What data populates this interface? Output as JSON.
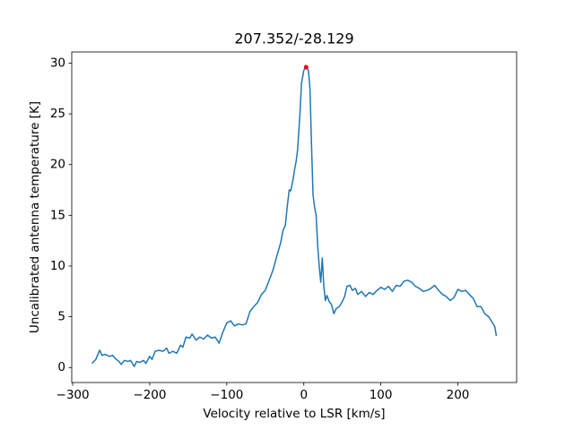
{
  "chart_data": {
    "type": "line",
    "title": "207.352/-28.129",
    "x_label": "Velocity relative to LSR [km/s]",
    "y_label": "Uncalibrated antenna temperature [K]",
    "xlim": [
      -301.25,
      276.25
    ],
    "ylim": [
      -1.48,
      31.1
    ],
    "xticks": [
      {
        "value": -300,
        "label": "−300"
      },
      {
        "value": -200,
        "label": "−200"
      },
      {
        "value": -100,
        "label": "−100"
      },
      0,
      100,
      200
    ],
    "yticks": [
      0,
      5,
      10,
      15,
      20,
      25,
      30
    ],
    "grid": false,
    "series": [
      {
        "color": "#1f77b4",
        "style": "line",
        "x": [
          -275,
          -270,
          -265,
          -262,
          -258,
          -252,
          -248,
          -245,
          -240,
          -237,
          -233,
          -228,
          -225,
          -220,
          -217,
          -213,
          -208,
          -205,
          -200,
          -197,
          -193,
          -188,
          -183,
          -178,
          -175,
          -170,
          -165,
          -160,
          -157,
          -153,
          -148,
          -145,
          -140,
          -135,
          -130,
          -125,
          -120,
          -115,
          -110,
          -105,
          -100,
          -95,
          -90,
          -85,
          -80,
          -75,
          -70,
          -65,
          -60,
          -55,
          -50,
          -45,
          -40,
          -35,
          -30,
          -27,
          -24,
          -22,
          -19,
          -17,
          -14,
          -12,
          -10,
          -8,
          -5,
          -3,
          0,
          3,
          6,
          8,
          10,
          12,
          14,
          16,
          18,
          20,
          22,
          24,
          26,
          28,
          30,
          33,
          36,
          39,
          42,
          46,
          50,
          53,
          56,
          60,
          63,
          67,
          70,
          75,
          80,
          85,
          90,
          95,
          100,
          105,
          110,
          115,
          120,
          125,
          130,
          135,
          140,
          145,
          150,
          155,
          160,
          165,
          170,
          175,
          180,
          185,
          190,
          195,
          200,
          205,
          210,
          215,
          220,
          225,
          230,
          235,
          240,
          245,
          248,
          250
        ],
        "values": [
          0.4,
          0.8,
          1.7,
          1.2,
          1.3,
          1.1,
          1.2,
          0.9,
          0.6,
          0.3,
          0.7,
          0.6,
          0.7,
          0.1,
          0.6,
          0.5,
          0.7,
          0.4,
          1.1,
          0.8,
          1.6,
          1.7,
          1.6,
          1.9,
          1.4,
          1.6,
          1.4,
          2.2,
          2.0,
          3.0,
          2.9,
          3.3,
          2.7,
          3.0,
          2.8,
          3.2,
          2.9,
          3.0,
          2.4,
          3.5,
          4.4,
          4.6,
          4.1,
          4.3,
          4.2,
          4.3,
          5.5,
          6.0,
          6.4,
          7.2,
          7.6,
          8.6,
          9.6,
          11.0,
          12.3,
          13.5,
          14.0,
          15.5,
          17.5,
          17.4,
          18.5,
          19.5,
          20.3,
          21.5,
          25.0,
          28.0,
          29.3,
          29.6,
          29.3,
          27.5,
          22.0,
          17.0,
          15.8,
          15.0,
          12.0,
          10.0,
          8.4,
          10.8,
          8.0,
          6.6,
          7.1,
          6.5,
          6.2,
          5.3,
          5.8,
          6.0,
          6.5,
          7.0,
          8.0,
          8.1,
          7.6,
          7.8,
          7.2,
          7.5,
          7.0,
          7.4,
          7.2,
          7.6,
          7.9,
          7.7,
          8.0,
          7.5,
          8.1,
          8.0,
          8.5,
          8.6,
          8.4,
          8.0,
          7.8,
          7.5,
          7.6,
          7.8,
          8.1,
          7.6,
          7.2,
          7.0,
          6.6,
          6.9,
          7.7,
          7.5,
          7.6,
          7.2,
          6.8,
          6.0,
          6.0,
          5.3,
          5.0,
          4.4,
          4.0,
          3.1
        ]
      },
      {
        "color": "#ff0000",
        "style": "point",
        "x": [
          3
        ],
        "values": [
          29.6
        ]
      }
    ]
  }
}
